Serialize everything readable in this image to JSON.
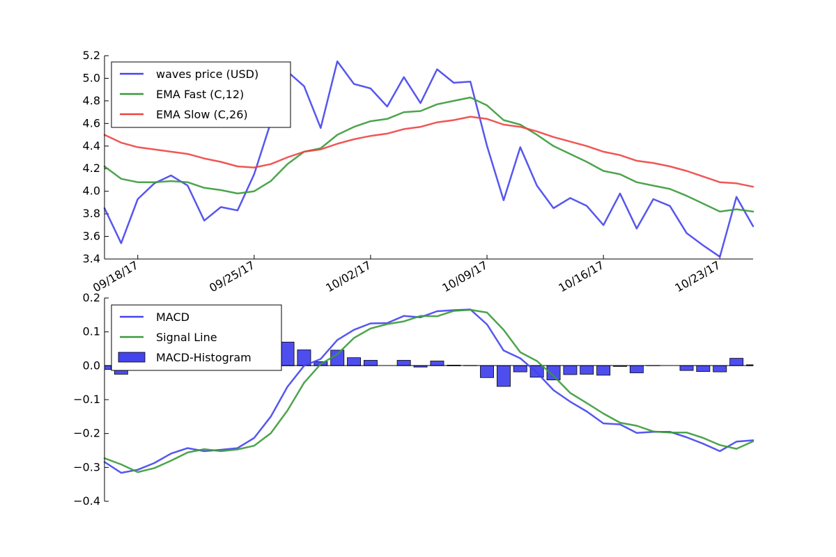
{
  "chart_data": [
    {
      "type": "line",
      "ylim": [
        3.4,
        5.2
      ],
      "yticks": [
        "3.4",
        "3.6",
        "3.8",
        "4.0",
        "4.2",
        "4.4",
        "4.6",
        "4.8",
        "5.0",
        "5.2"
      ],
      "xticks": [
        "09/18/17",
        "09/25/17",
        "10/02/17",
        "10/09/17",
        "10/16/17",
        "10/23/17"
      ],
      "legend_position": "top-left",
      "series": [
        {
          "name": "waves price (USD)",
          "color": "#4444ee",
          "values": [
            3.85,
            3.54,
            3.93,
            4.07,
            4.14,
            4.05,
            3.74,
            3.86,
            3.83,
            4.15,
            4.61,
            5.06,
            4.93,
            4.56,
            5.15,
            4.95,
            4.91,
            4.75,
            5.01,
            4.78,
            5.08,
            4.96,
            4.97,
            4.4,
            3.92,
            4.39,
            4.05,
            3.85,
            3.94,
            3.87,
            3.7,
            3.98,
            3.67,
            3.93,
            3.87,
            3.63,
            3.52,
            3.42,
            3.95,
            3.69
          ]
        },
        {
          "name": "EMA Fast (C,12)",
          "color": "#3a9a3a",
          "values": [
            4.22,
            4.11,
            4.08,
            4.08,
            4.09,
            4.08,
            4.03,
            4.01,
            3.98,
            4.0,
            4.09,
            4.24,
            4.35,
            4.38,
            4.5,
            4.57,
            4.62,
            4.64,
            4.7,
            4.71,
            4.77,
            4.8,
            4.83,
            4.76,
            4.63,
            4.59,
            4.5,
            4.4,
            4.33,
            4.26,
            4.18,
            4.15,
            4.08,
            4.05,
            4.02,
            3.96,
            3.89,
            3.82,
            3.84,
            3.82
          ]
        },
        {
          "name": "EMA Slow (C,26)",
          "color": "#ee4444",
          "values": [
            4.5,
            4.43,
            4.39,
            4.37,
            4.35,
            4.33,
            4.29,
            4.26,
            4.22,
            4.21,
            4.24,
            4.3,
            4.35,
            4.37,
            4.42,
            4.46,
            4.49,
            4.51,
            4.55,
            4.57,
            4.61,
            4.63,
            4.66,
            4.64,
            4.59,
            4.57,
            4.53,
            4.48,
            4.44,
            4.4,
            4.35,
            4.32,
            4.27,
            4.25,
            4.22,
            4.18,
            4.13,
            4.08,
            4.07,
            4.04
          ]
        }
      ]
    },
    {
      "type": "line",
      "ylim": [
        -0.4,
        0.2
      ],
      "yticks": [
        "−0.4",
        "−0.3",
        "−0.2",
        "−0.1",
        "0.0",
        "0.1",
        "0.2"
      ],
      "legend_position": "top-left",
      "series": [
        {
          "name": "MACD",
          "color": "#4444ee",
          "values": [
            -0.284,
            -0.316,
            -0.307,
            -0.287,
            -0.259,
            -0.243,
            -0.252,
            -0.248,
            -0.243,
            -0.213,
            -0.15,
            -0.062,
            0.0,
            0.02,
            0.076,
            0.106,
            0.125,
            0.126,
            0.147,
            0.143,
            0.161,
            0.164,
            0.166,
            0.122,
            0.045,
            0.022,
            -0.02,
            -0.072,
            -0.106,
            -0.135,
            -0.17,
            -0.173,
            -0.198,
            -0.195,
            -0.195,
            -0.211,
            -0.23,
            -0.252,
            -0.224,
            -0.22
          ]
        },
        {
          "name": "Signal Line",
          "color": "#3a9a3a",
          "values": [
            -0.273,
            -0.291,
            -0.314,
            -0.302,
            -0.28,
            -0.256,
            -0.246,
            -0.252,
            -0.247,
            -0.236,
            -0.199,
            -0.132,
            -0.05,
            0.005,
            0.034,
            0.082,
            0.11,
            0.123,
            0.131,
            0.147,
            0.146,
            0.162,
            0.165,
            0.157,
            0.106,
            0.04,
            0.014,
            -0.03,
            -0.08,
            -0.11,
            -0.141,
            -0.168,
            -0.177,
            -0.194,
            -0.197,
            -0.197,
            -0.213,
            -0.234,
            -0.245,
            -0.223
          ]
        },
        {
          "name": "MACD-Histogram",
          "type": "bar",
          "color": "#4444ee",
          "values": [
            -0.011,
            -0.025,
            0.0,
            0.0,
            0.0,
            0.0,
            0.0,
            0.0,
            0.0,
            0.0,
            0.0,
            0.07,
            0.047,
            0.012,
            0.046,
            0.024,
            0.016,
            0.0,
            0.016,
            -0.004,
            0.014,
            0.002,
            0.001,
            -0.035,
            -0.061,
            -0.018,
            -0.034,
            -0.042,
            -0.026,
            -0.025,
            -0.028,
            -0.002,
            -0.021,
            0.001,
            0.0,
            -0.014,
            -0.017,
            -0.018,
            0.022,
            0.003
          ]
        }
      ]
    }
  ]
}
